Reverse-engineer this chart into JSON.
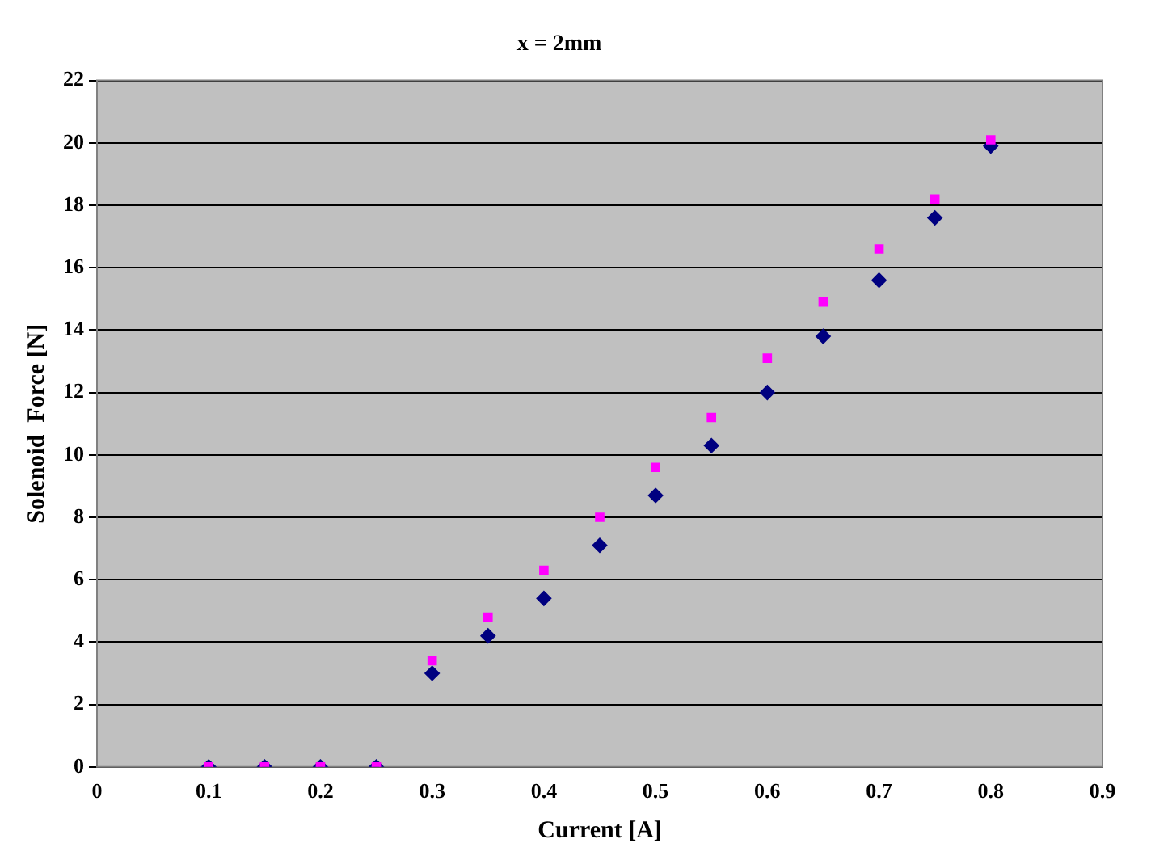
{
  "chart_data": {
    "type": "scatter",
    "title": "x = 2mm",
    "xlabel": "Current [A]",
    "ylabel": "Solenoid  Force [N]",
    "x": [
      0.1,
      0.15,
      0.2,
      0.25,
      0.3,
      0.35,
      0.4,
      0.45,
      0.5,
      0.55,
      0.6,
      0.65,
      0.7,
      0.75,
      0.8
    ],
    "series": [
      {
        "color": "#000080",
        "marker": "diamond",
        "values": [
          0,
          0,
          0,
          0,
          3.0,
          4.2,
          5.4,
          7.1,
          8.7,
          10.3,
          12.0,
          13.8,
          15.6,
          17.6,
          19.9
        ]
      },
      {
        "color": "#ff00ff",
        "marker": "square",
        "values": [
          0,
          0,
          0,
          0,
          3.4,
          4.8,
          6.3,
          8.0,
          9.6,
          11.2,
          13.1,
          14.9,
          16.6,
          18.2,
          20.1
        ]
      }
    ],
    "xlim": [
      0,
      0.9
    ],
    "xticks": [
      0,
      0.1,
      0.2,
      0.3,
      0.4,
      0.5,
      0.6,
      0.7,
      0.8,
      0.9
    ],
    "ylim": [
      0,
      22
    ],
    "yticks": [
      0,
      2,
      4,
      6,
      8,
      10,
      12,
      14,
      16,
      18,
      20,
      22
    ],
    "grid": "y",
    "legend": false
  }
}
